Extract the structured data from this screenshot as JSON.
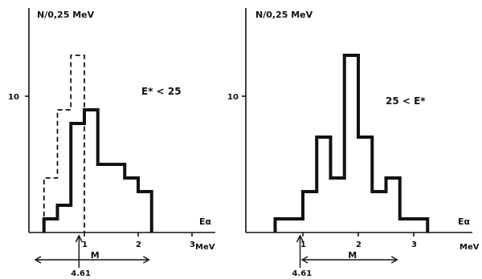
{
  "chart_data": [
    {
      "type": "histogram",
      "ylabel": "N/0,25 MeV",
      "xlabel": "Eα",
      "xunit": "MeV",
      "condition": "E* < 25",
      "x_ticks": [
        "1",
        "2",
        "3"
      ],
      "y_ticks": [
        "10"
      ],
      "xlim": [
        0,
        3.5
      ],
      "ylim": [
        0,
        14
      ],
      "bin_edges": [
        0.25,
        0.5,
        0.75,
        1.0,
        1.25,
        1.5,
        1.75,
        2.0,
        2.25
      ],
      "series": [
        {
          "style": "solid",
          "values": [
            1,
            2,
            8,
            9,
            5,
            5,
            4,
            3
          ]
        },
        {
          "style": "dashed",
          "bin_edges": [
            0.25,
            0.5,
            0.75,
            1.0
          ],
          "values": [
            4,
            9,
            13
          ]
        }
      ],
      "annotations": [
        {
          "text": "4.61",
          "x": 0.9,
          "kind": "arrow-marker"
        },
        {
          "text": "M",
          "range": [
            0.0,
            2.2
          ],
          "kind": "double-arrow"
        }
      ]
    },
    {
      "type": "histogram",
      "ylabel": "N/0,25 MeV",
      "xlabel": "Eα",
      "xunit": "MeV",
      "condition": "25 < E*",
      "x_ticks": [
        "1",
        "2",
        "3"
      ],
      "y_ticks": [
        "10"
      ],
      "xlim": [
        0,
        3.5
      ],
      "ylim": [
        0,
        14
      ],
      "bin_edges": [
        0.5,
        0.75,
        1.0,
        1.25,
        1.5,
        1.75,
        2.0,
        2.25,
        2.5,
        2.75,
        3.0,
        3.25
      ],
      "series": [
        {
          "style": "solid",
          "values": [
            1,
            1,
            3,
            7,
            4,
            13,
            7,
            3,
            4,
            1,
            1
          ]
        }
      ],
      "annotations": [
        {
          "text": "4.61",
          "x": 0.95,
          "kind": "arrow-marker"
        },
        {
          "text": "M",
          "range": [
            0.9,
            2.7
          ],
          "kind": "double-arrow"
        }
      ]
    }
  ]
}
